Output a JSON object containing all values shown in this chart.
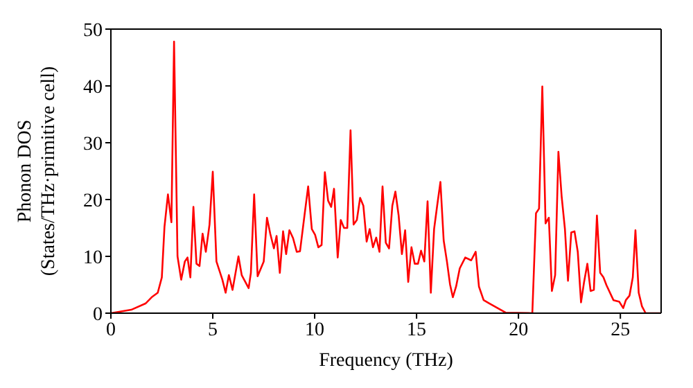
{
  "chart_data": {
    "type": "line",
    "xlabel": "Frequency (THz)",
    "ylabel": "Phonon DOS\n(States/THz·primitive cell)",
    "xlim": [
      0,
      27
    ],
    "xticks": [
      0,
      5,
      10,
      15,
      20,
      25
    ],
    "ylim": [
      0,
      50
    ],
    "yticks": [
      0,
      10,
      20,
      30,
      40,
      50
    ],
    "marker": "none",
    "line_style": "solid",
    "series": [
      {
        "color": "#ff0000",
        "x": [
          0,
          1.0,
          1.7,
          2.0,
          2.3,
          2.5,
          2.63,
          2.8,
          2.97,
          3.1,
          3.27,
          3.45,
          3.63,
          3.76,
          3.9,
          4.05,
          4.2,
          4.35,
          4.5,
          4.66,
          4.84,
          5.0,
          5.18,
          5.47,
          5.63,
          5.79,
          5.97,
          6.26,
          6.42,
          6.76,
          6.87,
          7.03,
          7.2,
          7.5,
          7.66,
          7.82,
          8.0,
          8.13,
          8.29,
          8.45,
          8.6,
          8.76,
          8.94,
          9.12,
          9.28,
          9.5,
          9.68,
          9.86,
          10.02,
          10.18,
          10.34,
          10.5,
          10.66,
          10.81,
          10.95,
          11.13,
          11.28,
          11.44,
          11.6,
          11.76,
          11.91,
          12.07,
          12.23,
          12.39,
          12.55,
          12.7,
          12.86,
          13.02,
          13.18,
          13.33,
          13.49,
          13.65,
          13.81,
          13.96,
          14.12,
          14.28,
          14.44,
          14.59,
          14.75,
          14.91,
          15.07,
          15.22,
          15.38,
          15.54,
          15.7,
          15.86,
          16.01,
          16.17,
          16.33,
          16.49,
          16.64,
          16.78,
          16.94,
          17.12,
          17.39,
          17.68,
          17.9,
          18.06,
          18.29,
          18.58,
          19.37,
          20.68,
          20.86,
          21.01,
          21.17,
          21.33,
          21.49,
          21.64,
          21.8,
          21.96,
          22.12,
          22.28,
          22.43,
          22.59,
          22.75,
          22.91,
          23.07,
          23.22,
          23.38,
          23.54,
          23.7,
          23.85,
          24.01,
          24.17,
          24.32,
          24.66,
          24.95,
          25.14,
          25.27,
          25.45,
          25.61,
          25.74,
          25.9,
          26.06,
          26.24,
          27
        ],
        "values": [
          0,
          0.6,
          1.7,
          2.8,
          3.6,
          6.3,
          15.2,
          20.9,
          16.0,
          47.8,
          10,
          5.9,
          9.1,
          9.8,
          6.3,
          18.7,
          8.7,
          8.3,
          14,
          10.8,
          15.6,
          24.9,
          9.1,
          5.9,
          3.6,
          6.7,
          4.1,
          10,
          6.7,
          4.4,
          7.1,
          20.9,
          6.5,
          9.1,
          16.8,
          14,
          11.4,
          13.6,
          7.1,
          14.4,
          10.4,
          14.6,
          13.2,
          10.8,
          10.9,
          17.2,
          22.3,
          14.8,
          13.8,
          11.6,
          12,
          24.8,
          19.8,
          18.7,
          21.9,
          9.8,
          16.4,
          15,
          15,
          32.2,
          15.6,
          16.4,
          20.3,
          18.9,
          12.6,
          14.8,
          11.6,
          13.3,
          10.8,
          22.3,
          12.4,
          11.4,
          18.9,
          21.4,
          17.2,
          10.4,
          14.6,
          5.5,
          11.6,
          8.7,
          8.7,
          11,
          9.1,
          19.7,
          3.6,
          14.8,
          18.9,
          23.1,
          12.8,
          9.1,
          5.1,
          2.8,
          4.7,
          7.9,
          9.8,
          9.3,
          10.8,
          4.7,
          2.3,
          1.7,
          0.1,
          0,
          17.6,
          18.4,
          39.9,
          15.8,
          16.8,
          3.9,
          6.7,
          28.4,
          20.5,
          14.8,
          5.7,
          14.2,
          14.4,
          10.8,
          1.9,
          5.5,
          8.7,
          3.9,
          4.1,
          17.2,
          7.1,
          6.3,
          4.9,
          2.3,
          2,
          0.9,
          2.3,
          3.1,
          6.3,
          14.6,
          3.6,
          1.2,
          0,
          0
        ]
      }
    ]
  }
}
